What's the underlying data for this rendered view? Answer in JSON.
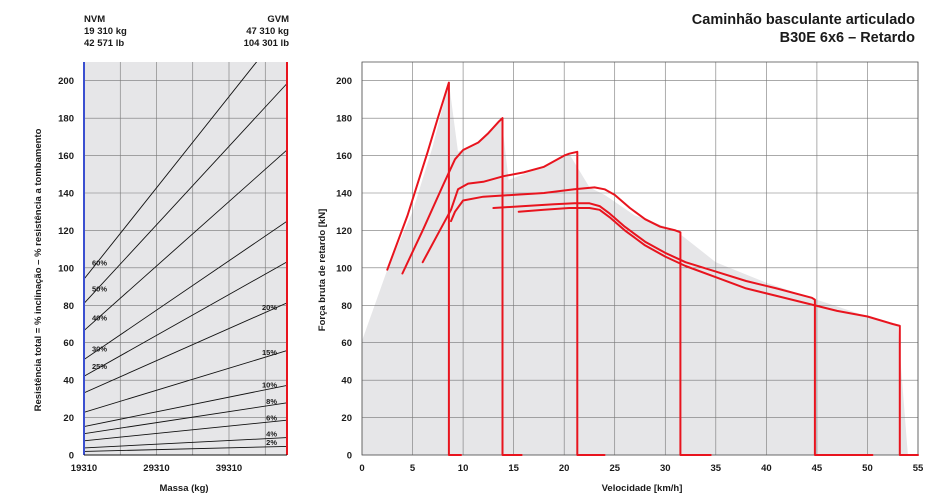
{
  "header": {
    "title_line1": "Caminhão basculante articulado",
    "title_line2": "B30E 6x6 – Retardo"
  },
  "left_chart": {
    "nvm_label": "NVM",
    "nvm_kg": "19 310 kg",
    "nvm_lb": "42 571 lb",
    "gvm_label": "GVM",
    "gvm_kg": "47 310 kg",
    "gvm_lb": "104 301 lb",
    "xlabel": "Massa (kg)",
    "ylabel": "Resistência total = % inclinação – % resistência a tombamento"
  },
  "right_chart": {
    "xlabel": "Velocidade [km/h]",
    "ylabel": "Força bruta de retardo [kN]"
  },
  "colors": {
    "curve": "#e8141e",
    "gvm_line": "#e8141e",
    "nvm_line": "#3a4fd0",
    "fill": "#e6e6e8",
    "grid": "#777777"
  },
  "chart_data": [
    {
      "type": "line",
      "xlabel": "Massa (kg)",
      "ylabel": "Resistência total = % inclinação – % resistência a tombamento",
      "x_ticks": [
        "19310",
        "29310",
        "39310"
      ],
      "xlim": [
        19310,
        47310
      ],
      "ylim": [
        0,
        210
      ],
      "y_ticks": [
        0,
        20,
        40,
        60,
        80,
        100,
        120,
        140,
        160,
        180,
        200
      ],
      "grid": true,
      "series": [
        {
          "name": "2%",
          "label_side": "right",
          "y_at_nvm": 1.9,
          "y_at_gvm": 4.6
        },
        {
          "name": "4%",
          "label_side": "right",
          "y_at_nvm": 3.8,
          "y_at_gvm": 9.3
        },
        {
          "name": "6%",
          "label_side": "right",
          "y_at_nvm": 7.6,
          "y_at_gvm": 18.6
        },
        {
          "name": "8%",
          "label_side": "right",
          "y_at_nvm": 11.4,
          "y_at_gvm": 27.9
        },
        {
          "name": "10%",
          "label_side": "right",
          "y_at_nvm": 15.2,
          "y_at_gvm": 37.2
        },
        {
          "name": "15%",
          "label_side": "right",
          "y_at_nvm": 22.8,
          "y_at_gvm": 55.8
        },
        {
          "name": "20%",
          "label_side": "right",
          "y_at_nvm": 33.2,
          "y_at_gvm": 81.3
        },
        {
          "name": "25%",
          "label_side": "left",
          "y_at_nvm": 42.1,
          "y_at_gvm": 103.2
        },
        {
          "name": "30%",
          "label_side": "left",
          "y_at_nvm": 51.0,
          "y_at_gvm": 124.9
        },
        {
          "name": "40%",
          "label_side": "left",
          "y_at_nvm": 66.5,
          "y_at_gvm": 163.0
        },
        {
          "name": "50%",
          "label_side": "left",
          "y_at_nvm": 81.0,
          "y_at_gvm": 198.5
        },
        {
          "name": "60%",
          "label_side": "left",
          "y_at_nvm": 94.0,
          "y_at_gvm": 230.5
        }
      ]
    },
    {
      "type": "line",
      "xlabel": "Velocidade [km/h]",
      "ylabel": "Força bruta de retardo [kN]",
      "xlim": [
        0,
        55
      ],
      "ylim": [
        0,
        210
      ],
      "x_ticks": [
        0,
        5,
        10,
        15,
        20,
        25,
        30,
        35,
        40,
        45,
        50,
        55
      ],
      "y_ticks": [
        0,
        20,
        40,
        60,
        80,
        100,
        120,
        140,
        160,
        180,
        200
      ],
      "grid": true,
      "shaded_envelope": [
        [
          0,
          61
        ],
        [
          2.5,
          99
        ],
        [
          5,
          130
        ],
        [
          7,
          165
        ],
        [
          8.6,
          199
        ],
        [
          9.5,
          162
        ],
        [
          11.5,
          167
        ],
        [
          13.8,
          180
        ],
        [
          14.5,
          147
        ],
        [
          17,
          152
        ],
        [
          20.5,
          161
        ],
        [
          22.5,
          143
        ],
        [
          24,
          139
        ],
        [
          27,
          128
        ],
        [
          31,
          120
        ],
        [
          35,
          103
        ],
        [
          40,
          92
        ],
        [
          45,
          83
        ],
        [
          50,
          74
        ],
        [
          53,
          69
        ],
        [
          54,
          0
        ],
        [
          0,
          0
        ]
      ],
      "series": [
        {
          "name": "",
          "gear": 1,
          "x": [
            2.5,
            4.5,
            6.5,
            7.5,
            8.6,
            8.6,
            8.8,
            9.8
          ],
          "y": [
            99,
            128,
            162,
            180,
            199,
            0,
            0,
            0
          ]
        },
        {
          "name": "",
          "gear": 2,
          "x": [
            4,
            6,
            8,
            9.2,
            10,
            11.5,
            12.5,
            13.5,
            13.9,
            13.9,
            14.2,
            15.8
          ],
          "y": [
            97,
            120,
            144,
            158,
            163,
            167,
            172,
            178,
            180,
            0,
            0,
            0
          ]
        },
        {
          "name": "",
          "gear": 3,
          "x": [
            6,
            7.5,
            8.8,
            9.5,
            10.5,
            12,
            14,
            16,
            18,
            20,
            20.5,
            21.3,
            21.3,
            21.6,
            24
          ],
          "y": [
            103,
            118,
            131,
            142,
            145,
            146,
            149,
            151,
            154,
            160,
            161,
            162,
            0,
            0,
            0
          ]
        },
        {
          "name": "",
          "gear": 4,
          "x": [
            8.8,
            9.2,
            10,
            12,
            15,
            18,
            21,
            23,
            24,
            25,
            26.5,
            28,
            29.5,
            31,
            31.5,
            31.5,
            32,
            34.5
          ],
          "y": [
            125,
            130,
            136,
            138,
            139,
            140,
            142,
            143,
            142,
            139,
            132,
            126,
            122,
            120,
            119,
            0,
            0,
            0
          ]
        },
        {
          "name": "",
          "gear": 5,
          "x": [
            13,
            16,
            19,
            21,
            22.5,
            23.5,
            24.5,
            26,
            28,
            30,
            32,
            35,
            38,
            41,
            44.5,
            44.8,
            44.8,
            45.2,
            50.5
          ],
          "y": [
            132,
            133,
            134,
            134.5,
            134.5,
            133,
            129,
            122,
            114,
            108,
            103,
            98,
            93,
            89,
            84,
            83,
            0,
            0,
            0
          ]
        },
        {
          "name": "",
          "gear": 6,
          "x": [
            15.5,
            18,
            20.5,
            22.5,
            23.5,
            24.5,
            26,
            28,
            30,
            32,
            35,
            38,
            41,
            44,
            47,
            50,
            52.5,
            53.2,
            53.2,
            53.6,
            55
          ],
          "y": [
            130,
            131,
            132,
            132,
            131,
            127,
            120,
            112,
            106,
            101,
            95,
            89,
            85,
            81,
            77,
            74,
            70,
            69,
            0,
            0,
            0
          ]
        }
      ]
    }
  ]
}
